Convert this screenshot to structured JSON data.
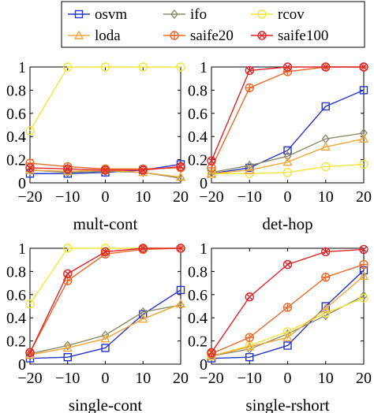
{
  "legend": {
    "entries": [
      {
        "name": "osvm",
        "color": "#2436c8",
        "marker": "square"
      },
      {
        "name": "ifo",
        "color": "#8c8c6a",
        "marker": "diamond"
      },
      {
        "name": "rcov",
        "color": "#f0e63c",
        "marker": "circle"
      },
      {
        "name": "loda",
        "color": "#f2a63a",
        "marker": "triangle"
      },
      {
        "name": "saife20",
        "color": "#ea6a2a",
        "marker": "circle-plus"
      },
      {
        "name": "saife100",
        "color": "#e0262a",
        "marker": "circle-x"
      }
    ]
  },
  "chart_data": [
    {
      "type": "line",
      "title": "mult-cont",
      "x": [
        -20,
        -10,
        0,
        10,
        20
      ],
      "xlim": [
        -20,
        20
      ],
      "ylim": [
        0,
        1
      ],
      "xticks": [
        "−20",
        "−10",
        "0",
        "10",
        "20"
      ],
      "yticks": [
        "0",
        "0.2",
        "0.4",
        "0.6",
        "0.8",
        "1"
      ],
      "series": [
        {
          "name": "osvm",
          "values": [
            0.08,
            0.08,
            0.09,
            0.11,
            0.16
          ]
        },
        {
          "name": "ifo",
          "values": [
            0.11,
            0.09,
            0.1,
            0.09,
            0.04
          ]
        },
        {
          "name": "rcov",
          "values": [
            0.45,
            1.0,
            1.0,
            1.0,
            1.0
          ]
        },
        {
          "name": "loda",
          "values": [
            0.11,
            0.1,
            0.11,
            0.09,
            0.05
          ]
        },
        {
          "name": "saife20",
          "values": [
            0.17,
            0.14,
            0.12,
            0.12,
            0.13
          ]
        },
        {
          "name": "saife100",
          "values": [
            0.13,
            0.12,
            0.11,
            0.11,
            0.14
          ]
        }
      ]
    },
    {
      "type": "line",
      "title": "det-hop",
      "x": [
        -20,
        -10,
        0,
        10,
        20
      ],
      "xlim": [
        -20,
        20
      ],
      "ylim": [
        0,
        1
      ],
      "xticks": [
        "−20",
        "−10",
        "0",
        "10",
        "20"
      ],
      "yticks": [
        "0",
        "0.2",
        "0.4",
        "0.6",
        "0.8",
        "1"
      ],
      "series": [
        {
          "name": "osvm",
          "values": [
            0.08,
            0.13,
            0.28,
            0.66,
            0.8
          ]
        },
        {
          "name": "ifo",
          "values": [
            0.09,
            0.15,
            0.23,
            0.38,
            0.43
          ]
        },
        {
          "name": "rcov",
          "values": [
            0.08,
            0.08,
            0.09,
            0.14,
            0.16
          ]
        },
        {
          "name": "loda",
          "values": [
            0.08,
            0.11,
            0.18,
            0.31,
            0.38
          ]
        },
        {
          "name": "saife20",
          "values": [
            0.13,
            0.82,
            0.96,
            1.0,
            1.0
          ]
        },
        {
          "name": "saife100",
          "values": [
            0.19,
            0.97,
            1.0,
            1.0,
            1.0
          ]
        }
      ]
    },
    {
      "type": "line",
      "title": "single-cont",
      "x": [
        -20,
        -10,
        0,
        10,
        20
      ],
      "xlim": [
        -20,
        20
      ],
      "ylim": [
        0,
        1
      ],
      "xticks": [
        "−20",
        "−10",
        "0",
        "10",
        "20"
      ],
      "yticks": [
        "0",
        "0.2",
        "0.4",
        "0.6",
        "0.8",
        "1"
      ],
      "series": [
        {
          "name": "osvm",
          "values": [
            0.05,
            0.06,
            0.14,
            0.43,
            0.64
          ]
        },
        {
          "name": "ifo",
          "values": [
            0.09,
            0.16,
            0.25,
            0.45,
            0.51
          ]
        },
        {
          "name": "rcov",
          "values": [
            0.52,
            1.0,
            1.0,
            1.0,
            1.0
          ]
        },
        {
          "name": "loda",
          "values": [
            0.08,
            0.14,
            0.22,
            0.39,
            0.52
          ]
        },
        {
          "name": "saife20",
          "values": [
            0.1,
            0.72,
            0.95,
            0.99,
            1.0
          ]
        },
        {
          "name": "saife100",
          "values": [
            0.1,
            0.78,
            0.97,
            1.0,
            1.0
          ]
        }
      ]
    },
    {
      "type": "line",
      "title": "single-rshort",
      "x": [
        -20,
        -10,
        0,
        10,
        20
      ],
      "xlim": [
        -20,
        20
      ],
      "ylim": [
        0,
        1
      ],
      "xticks": [
        "−20",
        "−10",
        "0",
        "10",
        "20"
      ],
      "yticks": [
        "0",
        "0.2",
        "0.4",
        "0.6",
        "0.8",
        "1"
      ],
      "series": [
        {
          "name": "osvm",
          "values": [
            0.05,
            0.06,
            0.16,
            0.5,
            0.81
          ]
        },
        {
          "name": "ifo",
          "values": [
            0.07,
            0.13,
            0.26,
            0.42,
            0.59
          ]
        },
        {
          "name": "rcov",
          "values": [
            0.07,
            0.16,
            0.28,
            0.44,
            0.57
          ]
        },
        {
          "name": "loda",
          "values": [
            0.07,
            0.15,
            0.23,
            0.48,
            0.76
          ]
        },
        {
          "name": "saife20",
          "values": [
            0.09,
            0.23,
            0.49,
            0.75,
            0.86
          ]
        },
        {
          "name": "saife100",
          "values": [
            0.1,
            0.58,
            0.86,
            0.97,
            0.99
          ]
        }
      ]
    }
  ]
}
